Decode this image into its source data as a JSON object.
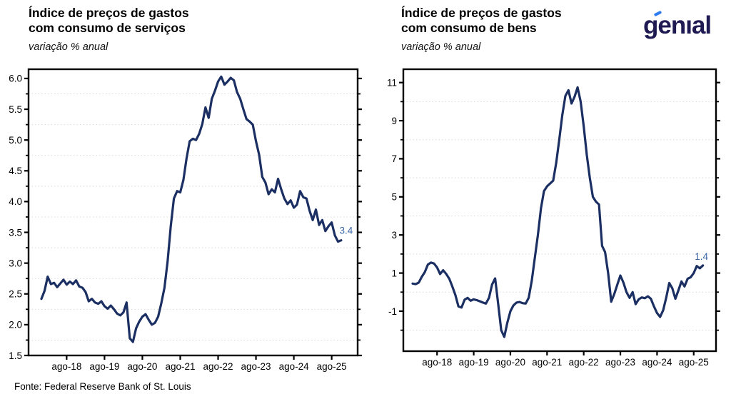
{
  "branding": {
    "logo_text": "genıal",
    "logo_color": "#1f1b52",
    "logo_accent_color": "#2e7df0"
  },
  "footer": {
    "source": "Fonte: Federal Reserve Bank of St. Louis"
  },
  "chart_data": [
    {
      "type": "line",
      "title_lines": [
        "Índice de preços de gastos",
        "com consumo de serviços"
      ],
      "title": "Índice de preços de gastos com consumo de serviços",
      "subtitle": "variação % anual",
      "x_frequency": "monthly",
      "x_start": "dez-2017",
      "x_end": "nov-2025",
      "x_tick_labels": [
        "ago-18",
        "ago-19",
        "ago-20",
        "ago-21",
        "ago-22",
        "ago-23",
        "ago-24",
        "ago-25"
      ],
      "y_ticks": [
        1.5,
        2.0,
        2.5,
        3.0,
        3.5,
        4.0,
        4.5,
        5.0,
        5.5,
        6.0
      ],
      "ylim": [
        1.5,
        6.15
      ],
      "grid": "dotted horizontal at minor ticks",
      "legend": "none",
      "end_label": "3.4",
      "line_color": "#1b2f63",
      "label_color": "#3a67a8",
      "series": [
        {
          "name": "Serviços - variação % anual",
          "values": [
            2.42,
            2.55,
            2.78,
            2.66,
            2.68,
            2.61,
            2.67,
            2.73,
            2.65,
            2.7,
            2.66,
            2.72,
            2.62,
            2.6,
            2.53,
            2.38,
            2.42,
            2.36,
            2.34,
            2.38,
            2.3,
            2.26,
            2.31,
            2.25,
            2.18,
            2.15,
            2.2,
            2.36,
            1.78,
            1.72,
            1.94,
            2.05,
            2.13,
            2.17,
            2.08,
            2.0,
            2.03,
            2.13,
            2.35,
            2.6,
            3.03,
            3.6,
            4.05,
            4.17,
            4.15,
            4.35,
            4.7,
            4.98,
            5.02,
            5.0,
            5.1,
            5.26,
            5.53,
            5.36,
            5.67,
            5.8,
            5.95,
            6.03,
            5.9,
            5.95,
            6.01,
            5.97,
            5.78,
            5.67,
            5.5,
            5.34,
            5.3,
            5.25,
            4.98,
            4.76,
            4.4,
            4.31,
            4.12,
            4.2,
            4.15,
            4.37,
            4.2,
            4.05,
            3.96,
            4.02,
            3.9,
            3.95,
            4.17,
            4.07,
            4.05,
            3.85,
            3.7,
            3.87,
            3.62,
            3.7,
            3.52,
            3.6,
            3.66,
            3.45,
            3.35,
            3.37
          ]
        }
      ]
    },
    {
      "type": "line",
      "title_lines": [
        "Índice de preços de gastos",
        "com consumo de bens"
      ],
      "title": "Índice de preços de gastos com consumo de bens",
      "subtitle": "variação % anual",
      "x_frequency": "monthly",
      "x_start": "dez-2017",
      "x_end": "nov-2025",
      "x_tick_labels": [
        "ago-18",
        "ago-19",
        "ago-20",
        "ago-21",
        "ago-22",
        "ago-23",
        "ago-24",
        "ago-25"
      ],
      "y_ticks": [
        -1,
        1,
        3,
        5,
        7,
        9,
        11
      ],
      "ylim": [
        -3.1,
        11.7
      ],
      "grid": "dotted horizontal at minor ticks",
      "legend": "none",
      "end_label": "1.4",
      "line_color": "#1b2f63",
      "label_color": "#3a67a8",
      "series": [
        {
          "name": "Bens - variação % anual",
          "values": [
            0.45,
            0.42,
            0.5,
            0.8,
            1.05,
            1.45,
            1.55,
            1.5,
            1.3,
            0.95,
            1.15,
            0.95,
            0.7,
            0.3,
            -0.15,
            -0.75,
            -0.81,
            -0.4,
            -0.3,
            -0.45,
            -0.38,
            -0.42,
            -0.48,
            -0.55,
            -0.6,
            -0.3,
            0.4,
            0.72,
            -0.6,
            -2.0,
            -2.35,
            -1.6,
            -1.0,
            -0.7,
            -0.55,
            -0.52,
            -0.58,
            -0.6,
            -0.3,
            0.6,
            1.8,
            3.0,
            4.4,
            5.3,
            5.55,
            5.7,
            5.85,
            6.8,
            8.0,
            9.3,
            10.3,
            10.6,
            9.9,
            10.25,
            10.75,
            10.0,
            8.7,
            7.2,
            6.0,
            5.0,
            4.75,
            4.6,
            2.43,
            2.1,
            1.0,
            -0.5,
            -0.1,
            0.4,
            0.87,
            0.5,
            0.0,
            -0.3,
            0.0,
            -0.63,
            -0.38,
            -0.28,
            -0.32,
            -0.22,
            -0.35,
            -0.75,
            -1.1,
            -1.3,
            -0.95,
            -0.3,
            0.48,
            0.2,
            -0.35,
            0.1,
            0.56,
            0.3,
            0.7,
            0.78,
            1.0,
            1.37,
            1.25,
            1.4
          ]
        }
      ]
    }
  ]
}
